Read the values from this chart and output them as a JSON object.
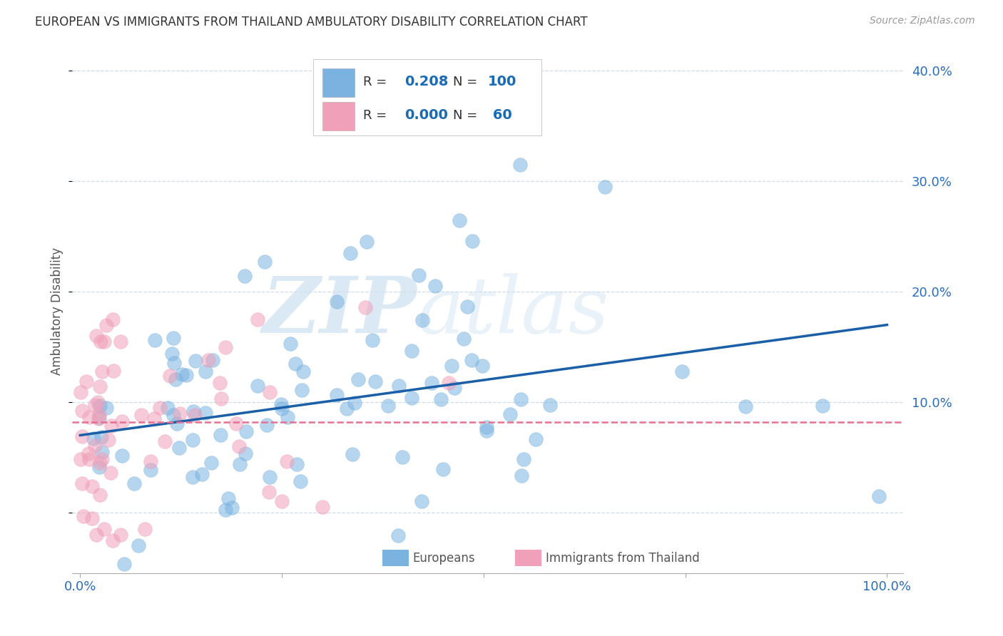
{
  "title": "EUROPEAN VS IMMIGRANTS FROM THAILAND AMBULATORY DISABILITY CORRELATION CHART",
  "source": "Source: ZipAtlas.com",
  "ylabel": "Ambulatory Disability",
  "blue_color": "#7ab3e0",
  "pink_color": "#f0a0b8",
  "blue_line_color": "#1a5fa8",
  "pink_line_color": "#e87090",
  "grid_color": "#c8d8e8",
  "background_color": "#ffffff",
  "watermark_color": "#cce0f0",
  "legend_R_blue": "0.208",
  "legend_N_blue": "100",
  "legend_R_pink": "0.000",
  "legend_N_pink": "60",
  "blue_trend_x0": 0.0,
  "blue_trend_y0": 0.07,
  "blue_trend_x1": 1.0,
  "blue_trend_y1": 0.17,
  "pink_trend_y": 0.082,
  "ylim_low": -0.055,
  "ylim_high": 0.42,
  "yticks": [
    0.0,
    0.1,
    0.2,
    0.3,
    0.4
  ],
  "ytick_labels": [
    "",
    "10.0%",
    "20.0%",
    "30.0%",
    "40.0%"
  ],
  "xticks": [
    0.0,
    0.25,
    0.5,
    0.75,
    1.0
  ],
  "xtick_labels": [
    "0.0%",
    "",
    "",
    "",
    "100.0%"
  ]
}
